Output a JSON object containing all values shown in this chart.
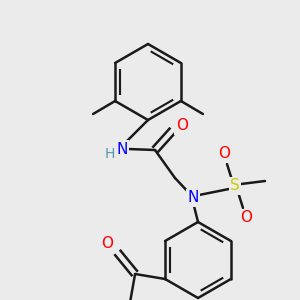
{
  "bg_color": "#ebebeb",
  "atom_colors": {
    "N": "#0000ff",
    "O": "#ff0000",
    "S": "#cccc00",
    "H": "#5599aa"
  },
  "bond_color": "#1a1a1a",
  "bond_width": 1.8,
  "font_size": 10,
  "scale": 1.0
}
